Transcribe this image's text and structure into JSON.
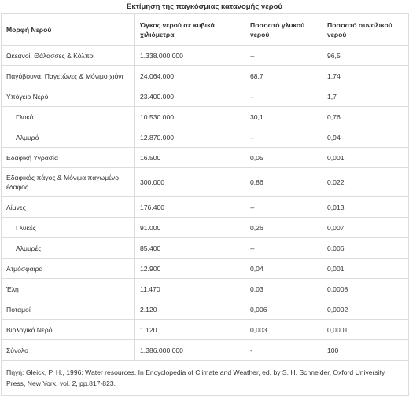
{
  "caption": "Εκτίμηση της παγκόσμιας κατανομής νερού",
  "headers": [
    "Μορφή Νερού",
    "Όγκος νερού σε κυβικά χιλιόμετρα",
    "Ποσοστό γλυκού νερού",
    "Ποσοστό συνολικού νερού"
  ],
  "rows": [
    {
      "name": "Ωκεανοί, Θάλασσες & Κόλποι",
      "volume": "1.338.000.000",
      "fresh": "--",
      "total": "96,5",
      "sub": false,
      "tall": false
    },
    {
      "name": "Παγόβουνα, Παγετώνες & Μόνιμο χιόνι",
      "volume": "24.064.000",
      "fresh": "68,7",
      "total": "1,74",
      "sub": false,
      "tall": false
    },
    {
      "name": "Υπόγειο Νερό",
      "volume": "23.400.000",
      "fresh": "--",
      "total": "1,7",
      "sub": false,
      "tall": false
    },
    {
      "name": "Γλυκό",
      "volume": "10.530.000",
      "fresh": "30,1",
      "total": "0,76",
      "sub": true,
      "tall": false
    },
    {
      "name": "Αλμυρό",
      "volume": "12.870.000",
      "fresh": "--",
      "total": "0,94",
      "sub": true,
      "tall": false
    },
    {
      "name": "Εδαφική Υγρασία",
      "volume": "16.500",
      "fresh": "0,05",
      "total": "0,001",
      "sub": false,
      "tall": false
    },
    {
      "name": "Εδαφικός πάγος & Μόνιμα παγωμένο έδαφος",
      "volume": "300.000",
      "fresh": "0,86",
      "total": "0,022",
      "sub": false,
      "tall": true
    },
    {
      "name": "Λίμνες",
      "volume": "176.400",
      "fresh": "--",
      "total": "0,013",
      "sub": false,
      "tall": false
    },
    {
      "name": "Γλυκές",
      "volume": "91.000",
      "fresh": "0,26",
      "total": "0,007",
      "sub": true,
      "tall": false
    },
    {
      "name": "Αλμυρές",
      "volume": "85.400",
      "fresh": "--",
      "total": "0,006",
      "sub": true,
      "tall": false
    },
    {
      "name": "Ατμόσφαιρα",
      "volume": "12.900",
      "fresh": "0,04",
      "total": "0,001",
      "sub": false,
      "tall": false
    },
    {
      "name": "Έλη",
      "volume": "11.470",
      "fresh": "0,03",
      "total": "0,0008",
      "sub": false,
      "tall": false
    },
    {
      "name": "Ποταμοί",
      "volume": "2.120",
      "fresh": "0,006",
      "total": "0,0002",
      "sub": false,
      "tall": false
    },
    {
      "name": "Βιολογικό Νερό",
      "volume": "1.120",
      "fresh": "0,003",
      "total": "0,0001",
      "sub": false,
      "tall": false
    },
    {
      "name": "Σύνολο",
      "volume": "1.386.000.000",
      "fresh": "-",
      "total": "100",
      "sub": false,
      "tall": false
    }
  ],
  "source": "Πηγή: Gleick, P. H., 1996: Water resources. In Encyclopedia of Climate and Weather, ed. by S. H. Schneider, Oxford University Press, New York, vol. 2, pp.817-823."
}
